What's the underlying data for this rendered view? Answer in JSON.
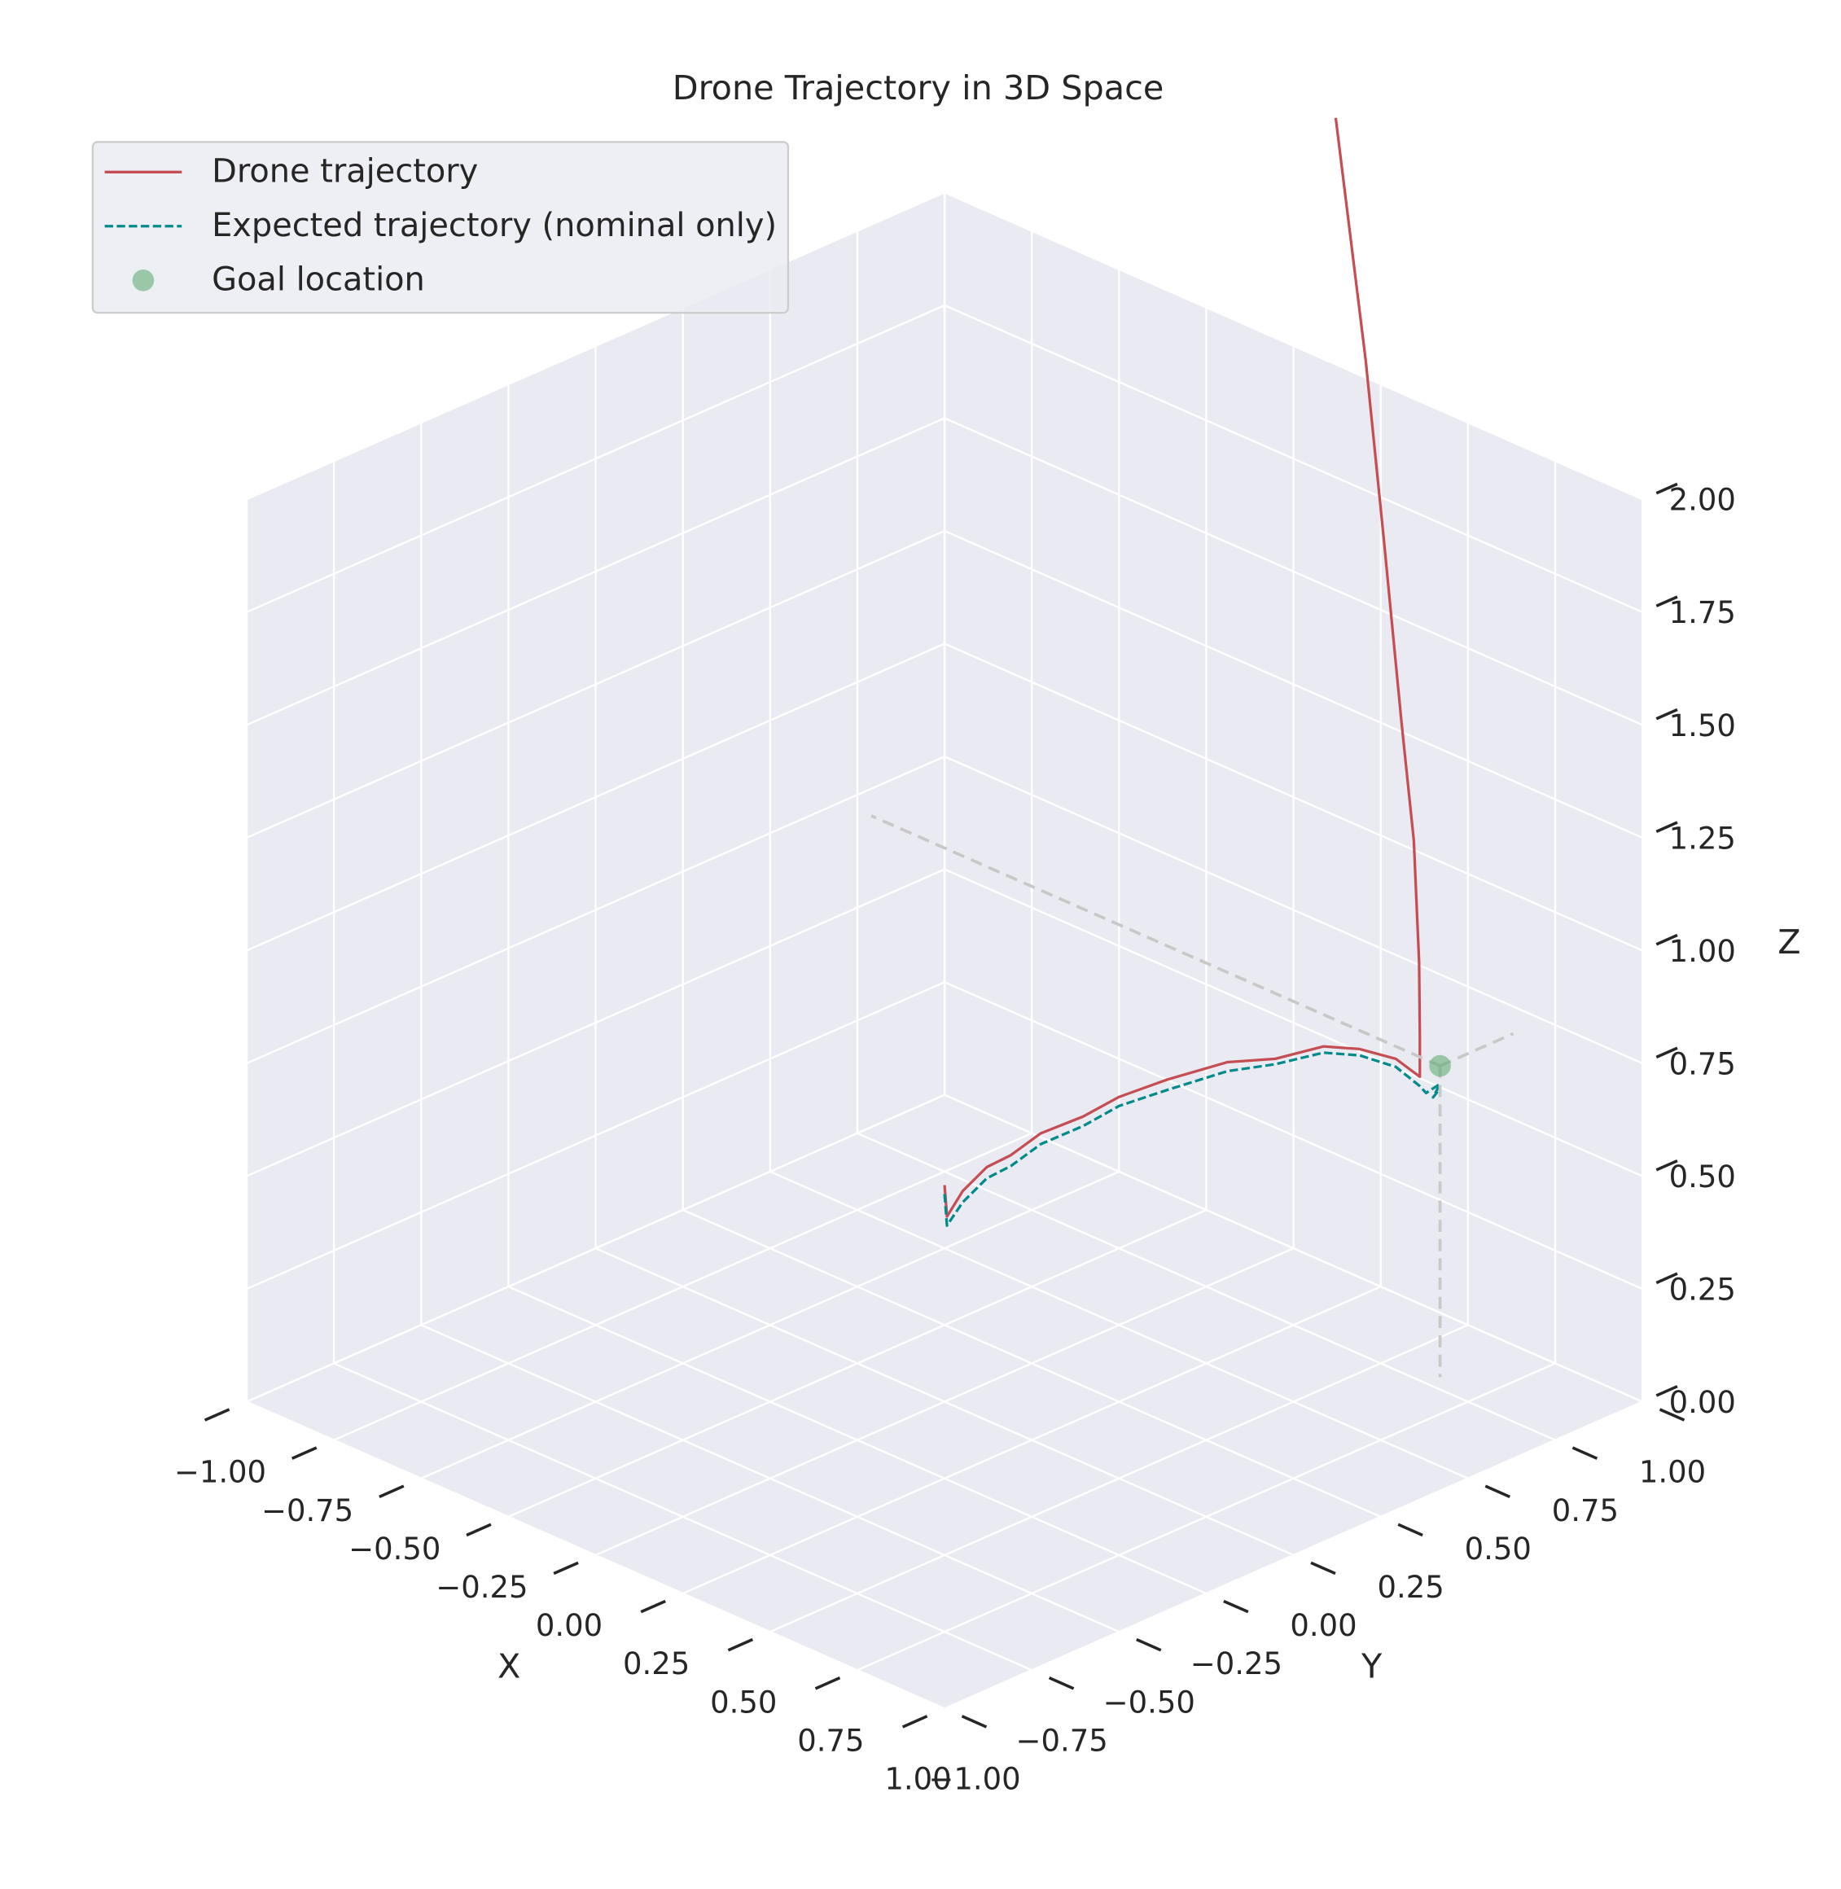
{
  "chart_data": {
    "type": "line3d",
    "title": "Drone Trajectory in 3D Space",
    "xlabel": "X",
    "ylabel": "Y",
    "zlabel": "Z",
    "xlim": [
      -1,
      1
    ],
    "ylim": [
      -1,
      1
    ],
    "zlim": [
      0,
      2
    ],
    "xticks": [
      {
        "value": -1,
        "label": "−1.00"
      },
      {
        "value": -0.75,
        "label": "−0.75"
      },
      {
        "value": -0.5,
        "label": "−0.50"
      },
      {
        "value": -0.25,
        "label": "−0.25"
      },
      {
        "value": 0,
        "label": "0.00"
      },
      0.25,
      {
        "value": 0.5,
        "label": "0.50"
      },
      0.75,
      {
        "value": 1,
        "label": "1.00"
      }
    ],
    "yticks": [
      {
        "value": -1,
        "label": "−1.00"
      },
      {
        "value": -0.75,
        "label": "−0.75"
      },
      {
        "value": -0.5,
        "label": "−0.50"
      },
      {
        "value": -0.25,
        "label": "−0.25"
      },
      {
        "value": 0,
        "label": "0.00"
      },
      0.25,
      {
        "value": 0.5,
        "label": "0.50"
      },
      0.75,
      {
        "value": 1,
        "label": "1.00"
      }
    ],
    "zticks": [
      {
        "value": 0,
        "label": "0.00"
      },
      0.25,
      {
        "value": 0.5,
        "label": "0.50"
      },
      0.75,
      {
        "value": 1,
        "label": "1.00"
      },
      1.25,
      {
        "value": 1.5,
        "label": "1.50"
      },
      1.75,
      {
        "value": 2,
        "label": "2.00"
      }
    ],
    "grid": true,
    "legend": "upper left",
    "series": [
      {
        "name": "Drone trajectory",
        "color": "#c44e52",
        "linestyle": "solid",
        "x": [
          0,
          0.003,
          0.023,
          0.053,
          0.084,
          0.122,
          0.175,
          0.22,
          0.281,
          0.357,
          0.418,
          0.479,
          0.525,
          0.57,
          0.601,
          0.601,
          0.6,
          0.593,
          0.578,
          0.555,
          0.532,
          0.494
        ],
        "y": [
          0,
          0.004,
          0.029,
          0.068,
          0.106,
          0.154,
          0.222,
          0.28,
          0.357,
          0.453,
          0.53,
          0.607,
          0.665,
          0.723,
          0.761,
          0.761,
          0.76,
          0.752,
          0.732,
          0.704,
          0.675,
          0.627
        ],
        "z": [
          0.48,
          0.41,
          0.465,
          0.515,
          0.539,
          0.584,
          0.616,
          0.655,
          0.688,
          0.72,
          0.722,
          0.744,
          0.734,
          0.708,
          0.666,
          0.76,
          0.92,
          1.19,
          1.45,
          1.86,
          2.26,
          2.8
        ]
      },
      {
        "name": "Expected trajectory (nominal only)",
        "color": "#008b8b",
        "linestyle": "dashed",
        "x": [
          0,
          0.003,
          0.023,
          0.053,
          0.084,
          0.122,
          0.175,
          0.22,
          0.281,
          0.357,
          0.418,
          0.479,
          0.525,
          0.57,
          0.601,
          0.61,
          0.63,
          0.62,
          0.63
        ],
        "y": [
          0,
          0.004,
          0.029,
          0.068,
          0.106,
          0.154,
          0.222,
          0.28,
          0.357,
          0.453,
          0.53,
          0.607,
          0.665,
          0.723,
          0.761,
          0.77,
          0.79,
          0.78,
          0.79
        ],
        "z": [
          0.46,
          0.39,
          0.44,
          0.49,
          0.515,
          0.56,
          0.595,
          0.635,
          0.665,
          0.7,
          0.71,
          0.73,
          0.72,
          0.69,
          0.645,
          0.63,
          0.65,
          0.62,
          0.64
        ]
      },
      {
        "name": "Goal location",
        "color": "#55a868",
        "marker": "o",
        "x": [
          0.63
        ],
        "y": [
          0.79
        ],
        "z": [
          0.69
        ]
      }
    ]
  }
}
